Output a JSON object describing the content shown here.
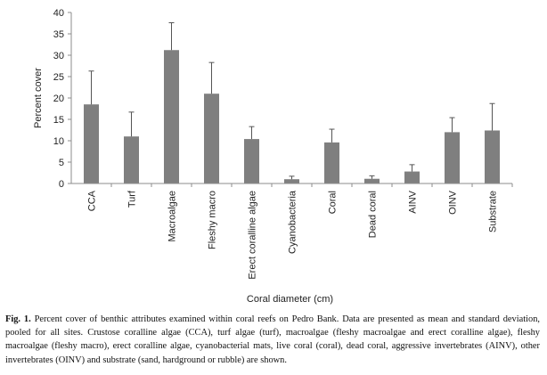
{
  "chart_data": {
    "type": "bar",
    "title": "",
    "xlabel": "Coral diameter (cm)",
    "ylabel": "Percent cover",
    "ylim": [
      0,
      40
    ],
    "yticks": [
      0,
      5,
      10,
      15,
      20,
      25,
      30,
      35,
      40
    ],
    "categories": [
      "CCA",
      "Turf",
      "Macroalgae",
      "Fleshy macro",
      "Erect coralline algae",
      "Cyanobacteria",
      "Coral",
      "Dead coral",
      "AINV",
      "OINV",
      "Substrate"
    ],
    "values": [
      18.5,
      11.0,
      31.2,
      21.0,
      10.4,
      1.0,
      9.6,
      1.1,
      2.8,
      12.0,
      12.4
    ],
    "error": [
      7.8,
      5.7,
      6.4,
      7.3,
      2.9,
      0.7,
      3.1,
      0.7,
      1.6,
      3.4,
      6.3
    ],
    "bar_color": "#7f7f7f",
    "grid": false
  },
  "caption": {
    "label": "Fig. 1.",
    "text": "Percent cover of benthic attributes examined within coral reefs on Pedro Bank.  Data are presented as mean and standard deviation, pooled for all sites. Crustose coralline algae (CCA), turf algae (turf), macroalgae (fleshy macroalgae and erect coralline algae), fleshy macroalgae (fleshy macro), erect coralline algae, cyanobacterial mats, live coral (coral), dead coral, aggressive invertebrates (AINV), other invertebrates (OINV) and substrate (sand, hardground or rubble) are shown."
  }
}
